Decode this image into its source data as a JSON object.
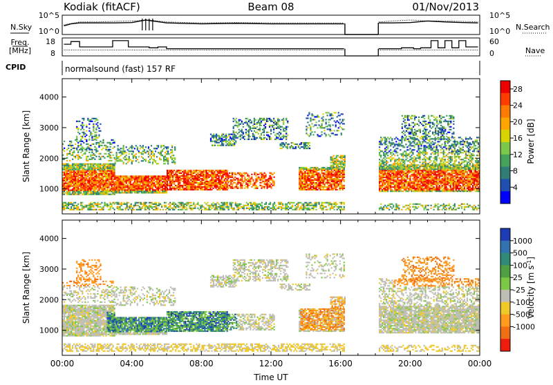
{
  "header": {
    "station": "Kodiak (fitACF)",
    "beam": "Beam 08",
    "date": "01/Nov/2013"
  },
  "panel_labels": {
    "nsky": "N.Sky",
    "nsearch": "N.Search",
    "freq_top": "Freq.",
    "freq_bottom": "[MHz]",
    "nave": "Nave",
    "cpid": "CPID",
    "cpid_value": "normalsound (fast) 157 RF"
  },
  "chart_data": [
    {
      "id": "noise",
      "type": "line",
      "left_label": "N.Sky",
      "right_label": "N.Search",
      "left_ticks": [
        "10^5",
        "10^0"
      ],
      "right_ticks": [
        "10^5",
        "10^0"
      ],
      "xlim": [
        0,
        24
      ],
      "gap_hours": [
        16.25,
        18.17
      ],
      "series": [
        {
          "name": "N.Sky",
          "style": "solid",
          "x": [
            0.1,
            0.5,
            1.0,
            2.0,
            3.0,
            4.0,
            4.8,
            5.2,
            6.0,
            8.0,
            10.0,
            12.0,
            14.0,
            16.2,
            18.2,
            19.0,
            20.0,
            21.0,
            22.0,
            23.0,
            23.9
          ],
          "y": [
            0.45,
            0.55,
            0.6,
            0.6,
            0.6,
            0.62,
            0.75,
            0.7,
            0.6,
            0.55,
            0.58,
            0.55,
            0.55,
            0.55,
            0.6,
            0.6,
            0.62,
            0.7,
            0.65,
            0.62,
            0.6
          ]
        },
        {
          "name": "N.Search",
          "style": "dotted",
          "x": [
            0.1,
            1.0,
            2.0,
            3.0,
            4.0,
            5.0,
            6.0,
            8.0,
            10.0,
            12.0,
            14.0,
            16.2,
            18.2,
            19.0,
            20.0,
            21.0,
            22.0,
            23.0,
            23.9
          ],
          "y": [
            0.5,
            0.65,
            0.65,
            0.68,
            0.7,
            0.75,
            0.65,
            0.6,
            0.62,
            0.6,
            0.6,
            0.6,
            0.65,
            0.7,
            0.75,
            0.7,
            0.7,
            0.68,
            0.65
          ]
        }
      ]
    },
    {
      "id": "freq",
      "type": "line",
      "left_label": "Freq. [MHz]",
      "right_label": "Nave",
      "left_ticks": [
        "18",
        "8"
      ],
      "right_ticks": [
        "60",
        "0"
      ],
      "ylim_left": [
        8,
        18
      ],
      "ylim_right": [
        0,
        60
      ],
      "series": [
        {
          "name": "Freq",
          "style": "step",
          "x": [
            0.1,
            0.5,
            1.0,
            2.0,
            2.9,
            3.3,
            3.8,
            4.3,
            5.0,
            5.5,
            6.0,
            16.2,
            18.2,
            19.5,
            20.2,
            20.6,
            21.2,
            21.6,
            22.0,
            22.4,
            22.8,
            23.2,
            23.9
          ],
          "y": [
            14.5,
            16.0,
            13.0,
            13.0,
            16.5,
            16.5,
            13.0,
            13.0,
            12.5,
            13.0,
            12.0,
            12.0,
            12.0,
            12.5,
            12.0,
            12.5,
            16.5,
            12.5,
            16.5,
            12.5,
            16.5,
            13.0,
            13.0
          ]
        },
        {
          "name": "Nave",
          "style": "dotted",
          "x": [
            0.1,
            2.0,
            4.0,
            8.0,
            12.0,
            16.2,
            18.2,
            20.0,
            22.0,
            23.9
          ],
          "y": [
            20,
            20,
            20,
            20,
            20,
            20,
            20,
            20,
            20,
            20
          ]
        }
      ]
    },
    {
      "id": "power",
      "type": "heatmap",
      "ylabel": "Slant Range [km]",
      "colorbar_label": "Power [dB]",
      "yticks": [
        "1000",
        "2000",
        "3000",
        "4000"
      ],
      "ylim": [
        180,
        4600
      ],
      "colorbar_ticks": [
        "4",
        "8",
        "12",
        "16",
        "20",
        "24",
        "28"
      ],
      "colorbar_range": [
        0,
        30
      ],
      "colors": [
        "#0000ff",
        "#1f4fb0",
        "#2f7d74",
        "#44a35a",
        "#7bc84a",
        "#d8d400",
        "#ffa500",
        "#ff7a00",
        "#ff3b00",
        "#ee0000"
      ]
    },
    {
      "id": "velocity",
      "type": "heatmap",
      "xlabel": "Time UT",
      "ylabel": "Slant Range [km]",
      "colorbar_label": "Velocity [m s",
      "colorbar_label_sup": "-1",
      "colorbar_label_end": "]",
      "xticks": [
        "00:00",
        "04:00",
        "08:00",
        "12:00",
        "16:00",
        "20:00",
        "00:00"
      ],
      "xtick_hours": [
        0,
        4,
        8,
        12,
        16,
        20,
        24
      ],
      "yticks": [
        "1000",
        "2000",
        "3000",
        "4000"
      ],
      "ylim": [
        180,
        4600
      ],
      "colorbar_ticks": [
        "1000",
        "500",
        "100",
        "25",
        "-25",
        "-100",
        "-500",
        "-1000"
      ],
      "colors": [
        "#1e3cb4",
        "#3073b0",
        "#2f8a78",
        "#4fa040",
        "#7cc846",
        "#bebeb4",
        "#f0c828",
        "#ff9a1e",
        "#f06e14",
        "#ee1c0a"
      ]
    }
  ]
}
